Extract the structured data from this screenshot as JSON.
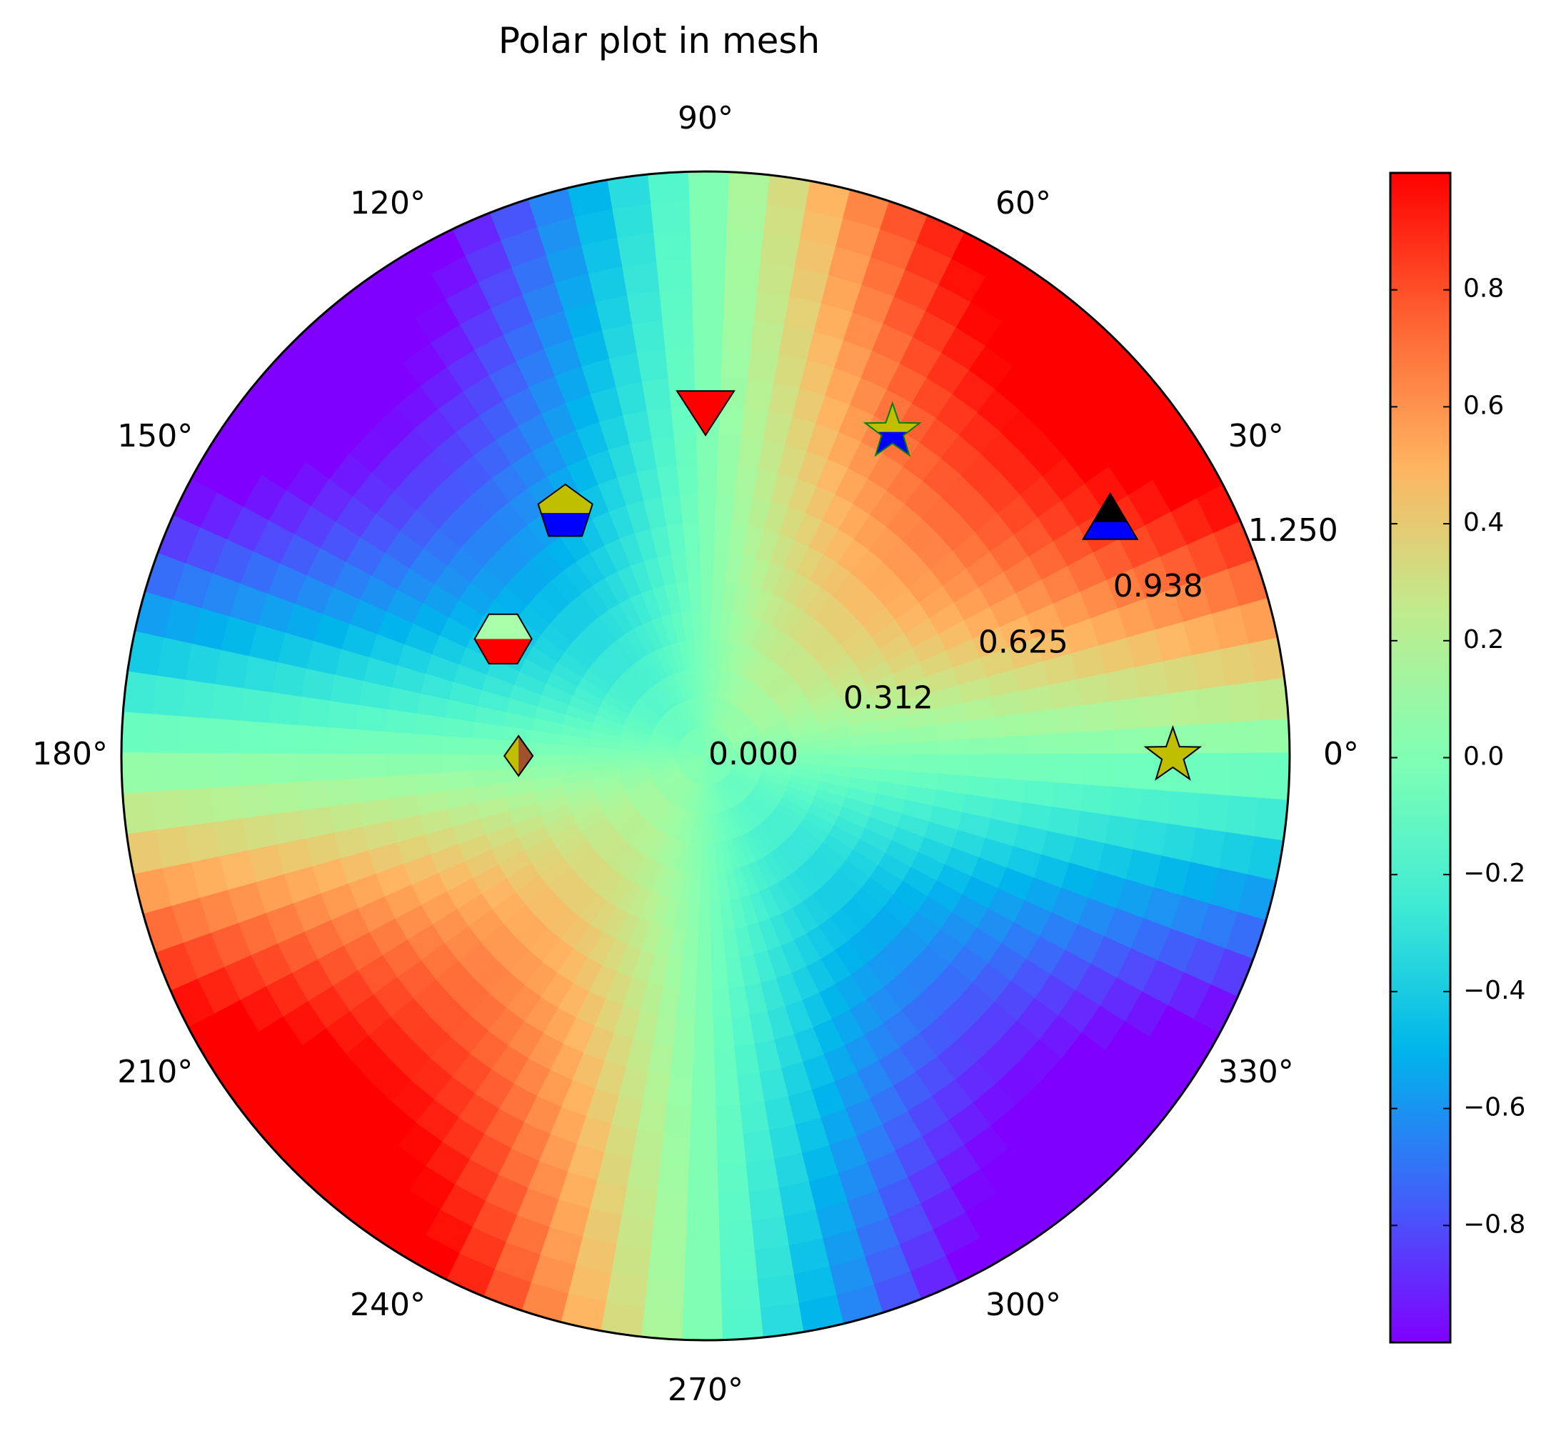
{
  "chart_data": {
    "type": "heatmap",
    "projection": "polar",
    "title": "Polar plot in mesh",
    "field": "r * sin(2*theta)",
    "colormap": "rainbow",
    "grid": false,
    "r_max": 1.25,
    "radial_ticks": [
      {
        "value": 0.0,
        "label": "0.000"
      },
      {
        "value": 0.3125,
        "label": "0.312"
      },
      {
        "value": 0.625,
        "label": "0.625"
      },
      {
        "value": 0.9375,
        "label": "0.938"
      },
      {
        "value": 1.25,
        "label": "1.250"
      }
    ],
    "radial_label_angle_deg": 22.5,
    "angle_ticks": [
      {
        "deg": 0,
        "label": "0°"
      },
      {
        "deg": 30,
        "label": "30°"
      },
      {
        "deg": 60,
        "label": "60°"
      },
      {
        "deg": 90,
        "label": "90°"
      },
      {
        "deg": 120,
        "label": "120°"
      },
      {
        "deg": 150,
        "label": "150°"
      },
      {
        "deg": 180,
        "label": "180°"
      },
      {
        "deg": 210,
        "label": "210°"
      },
      {
        "deg": 240,
        "label": "240°"
      },
      {
        "deg": 270,
        "label": "270°"
      },
      {
        "deg": 300,
        "label": "300°"
      },
      {
        "deg": 330,
        "label": "330°"
      }
    ],
    "colorbar": {
      "min": -1.0,
      "max": 1.0,
      "ticks": [
        {
          "value": 0.8,
          "label": "0.8"
        },
        {
          "value": 0.6,
          "label": "0.6"
        },
        {
          "value": 0.4,
          "label": "0.4"
        },
        {
          "value": 0.2,
          "label": "0.2"
        },
        {
          "value": 0.0,
          "label": "0.0"
        },
        {
          "value": -0.2,
          "label": "−0.2"
        },
        {
          "value": -0.4,
          "label": "−0.4"
        },
        {
          "value": -0.6,
          "label": "−0.6"
        },
        {
          "value": -0.8,
          "label": "−0.8"
        }
      ]
    },
    "markers": [
      {
        "shape": "star",
        "theta_deg": 0,
        "r": 1.0,
        "fill": "#bfbf00",
        "fill_alt": "#bfbf00",
        "edge": "#000000"
      },
      {
        "shape": "triangle-up",
        "theta_deg": 30,
        "r": 1.0,
        "fill": "#000000",
        "fill_alt": "#0000ff",
        "edge": "#000000"
      },
      {
        "shape": "star",
        "theta_deg": 60,
        "r": 0.8,
        "fill": "#bfbf00",
        "fill_alt": "#0000ff",
        "edge": "#008000"
      },
      {
        "shape": "triangle-down",
        "theta_deg": 90,
        "r": 0.75,
        "fill": "#ff0000",
        "fill_alt": "#ff0000",
        "edge": "#000000"
      },
      {
        "shape": "pentagon",
        "theta_deg": 120,
        "r": 0.6,
        "fill": "#bfbf00",
        "fill_alt": "#0000ff",
        "edge": "#000000"
      },
      {
        "shape": "hexagon",
        "theta_deg": 150,
        "r": 0.5,
        "fill": "#aaffaa",
        "fill_alt": "#ff0000",
        "edge": "#000000"
      },
      {
        "shape": "diamond",
        "theta_deg": 180,
        "r": 0.4,
        "fill": "#bfbf00",
        "fill_alt": "#a0522d",
        "edge": "#000000"
      }
    ]
  }
}
